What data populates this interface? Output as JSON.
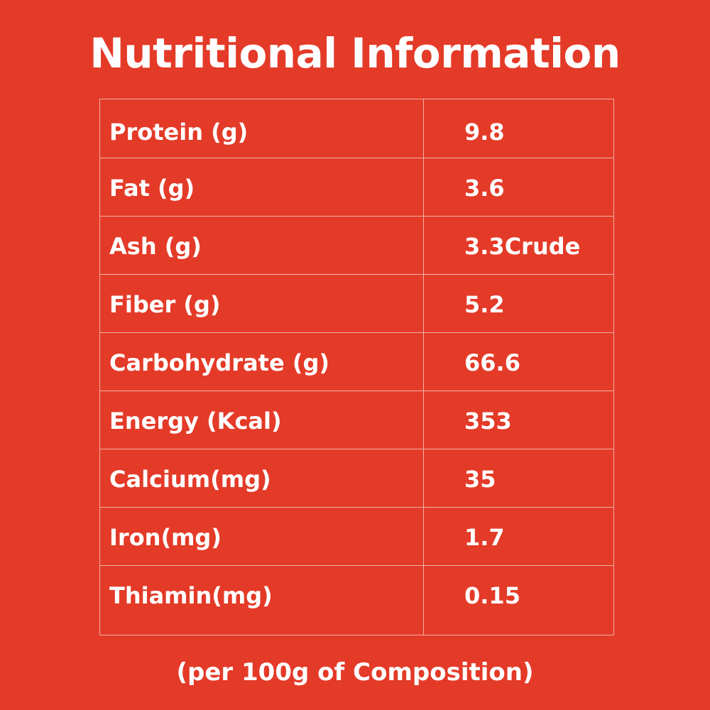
{
  "title": "Nutritional Information",
  "rows": [
    {
      "label": "Protein (g)",
      "value": "9.8"
    },
    {
      "label": "Fat (g)",
      "value": "3.6"
    },
    {
      "label": "Ash (g)",
      "value": "3.3Crude"
    },
    {
      "label": "Fiber (g)",
      "value": "5.2"
    },
    {
      "label": "Carbohydrate (g)",
      "value": "66.6"
    },
    {
      "label": "Energy (Kcal)",
      "value": "353"
    },
    {
      "label": "Calcium(mg)",
      "value": "35"
    },
    {
      "label": "Iron(mg)",
      "value": "1.7"
    },
    {
      "label": "Thiamin(mg)",
      "value": "0.15"
    }
  ],
  "footer": "(per 100g of Composition)",
  "colors": {
    "background": "#e43a28",
    "text": "#ffffff",
    "border": "#f2b1a6"
  }
}
